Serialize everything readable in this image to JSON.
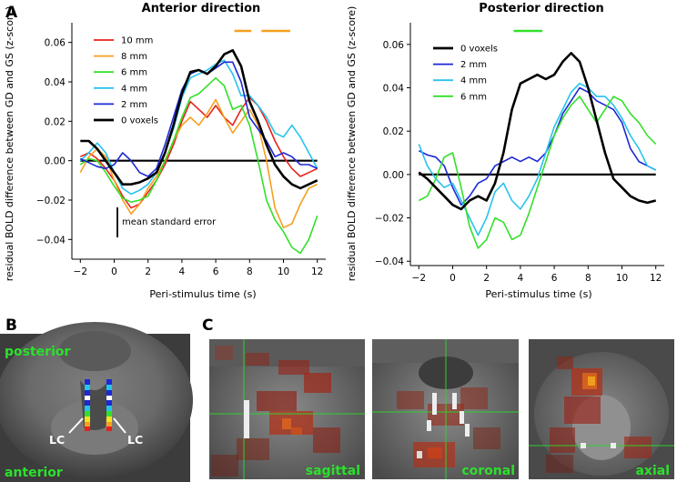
{
  "panel_labels": {
    "a": "A",
    "b": "B",
    "c": "C"
  },
  "colors": {
    "10 mm": "#e8221b",
    "8 mm": "#f5a01e",
    "6 mm": "#33e02a",
    "4 mm": "#27c3ec",
    "2 mm": "#1c27d6",
    "0 voxels": "#000000",
    "bar": "#f5a01e",
    "bar_posterior": "#33e02a"
  },
  "chart_data": [
    {
      "type": "line",
      "title": "Anterior direction",
      "xlabel": "Peri-stimulus time (s)",
      "ylabel": "residual BOLD difference between GD and GS (z-score)",
      "xlim": [
        -2.5,
        12.5
      ],
      "ylim": [
        -0.05,
        0.07
      ],
      "xticks": [
        -2,
        0,
        2,
        4,
        6,
        8,
        10,
        12
      ],
      "yticks": [
        -0.04,
        -0.02,
        0.0,
        0.02,
        0.04,
        0.06
      ],
      "ytick_labels": [
        "−0.04",
        "−0.02",
        "0.00",
        "0.02",
        "0.04",
        "0.06"
      ],
      "x": [
        -2,
        -1.5,
        -1,
        -0.5,
        0,
        0.5,
        1,
        1.5,
        2,
        2.5,
        3,
        3.5,
        4,
        4.5,
        5,
        5.5,
        6,
        6.5,
        7,
        7.5,
        8,
        8.5,
        9,
        9.5,
        10,
        10.5,
        11,
        11.5,
        12
      ],
      "series": [
        {
          "name": "10 mm",
          "values": [
            0.002,
            0.004,
            0.001,
            -0.004,
            -0.01,
            -0.018,
            -0.024,
            -0.022,
            -0.016,
            -0.01,
            -0.002,
            0.008,
            0.02,
            0.03,
            0.026,
            0.022,
            0.028,
            0.022,
            0.018,
            0.026,
            0.032,
            0.028,
            0.02,
            0.01,
            0.002,
            -0.004,
            -0.008,
            -0.006,
            -0.004
          ]
        },
        {
          "name": "8 mm",
          "values": [
            -0.006,
            0.002,
            0.006,
            0.002,
            -0.01,
            -0.02,
            -0.027,
            -0.022,
            -0.014,
            -0.008,
            0.0,
            0.01,
            0.018,
            0.022,
            0.018,
            0.024,
            0.031,
            0.022,
            0.014,
            0.02,
            0.026,
            0.018,
            0.0,
            -0.024,
            -0.034,
            -0.032,
            -0.022,
            -0.014,
            -0.012
          ]
        },
        {
          "name": "6 mm",
          "values": [
            -0.002,
            0.001,
            0.0,
            -0.006,
            -0.013,
            -0.019,
            -0.021,
            -0.02,
            -0.018,
            -0.01,
            0.0,
            0.01,
            0.022,
            0.032,
            0.034,
            0.038,
            0.042,
            0.038,
            0.026,
            0.028,
            0.018,
            0.0,
            -0.02,
            -0.03,
            -0.036,
            -0.044,
            -0.047,
            -0.04,
            -0.028
          ]
        },
        {
          "name": "4 mm",
          "values": [
            0.0,
            0.004,
            0.009,
            0.004,
            -0.006,
            -0.014,
            -0.017,
            -0.015,
            -0.012,
            -0.006,
            0.004,
            0.016,
            0.032,
            0.042,
            0.044,
            0.046,
            0.049,
            0.051,
            0.044,
            0.033,
            0.033,
            0.028,
            0.022,
            0.014,
            0.012,
            0.018,
            0.012,
            0.004,
            -0.004
          ]
        },
        {
          "name": "2 mm",
          "values": [
            0.001,
            -0.001,
            -0.003,
            -0.004,
            -0.002,
            0.004,
            0.0,
            -0.006,
            -0.008,
            -0.004,
            0.008,
            0.022,
            0.036,
            0.044,
            0.046,
            0.044,
            0.047,
            0.05,
            0.05,
            0.04,
            0.022,
            0.016,
            0.01,
            0.002,
            0.004,
            0.002,
            -0.002,
            -0.002,
            -0.004
          ]
        },
        {
          "name": "0 voxels",
          "values": [
            0.01,
            0.01,
            0.006,
            0.0,
            -0.006,
            -0.012,
            -0.012,
            -0.011,
            -0.009,
            -0.006,
            0.004,
            0.018,
            0.034,
            0.045,
            0.046,
            0.044,
            0.048,
            0.054,
            0.056,
            0.048,
            0.03,
            0.02,
            0.008,
            -0.002,
            -0.008,
            -0.012,
            -0.014,
            -0.012,
            -0.01
          ]
        }
      ],
      "significance_bars": [
        [
          7.1,
          8.1
        ],
        [
          8.7,
          10.4
        ]
      ],
      "error_bar_label": "mean standard error",
      "legend": "top-left"
    },
    {
      "type": "line",
      "title": "Posterior direction",
      "xlabel": "Peri-stimulus time (s)",
      "ylabel": "residual BOLD difference between GD and GS (z-score)",
      "xlim": [
        -2.5,
        12.5
      ],
      "ylim": [
        -0.042,
        0.07
      ],
      "xticks": [
        -2,
        0,
        2,
        4,
        6,
        8,
        10,
        12
      ],
      "yticks": [
        -0.04,
        -0.02,
        0.0,
        0.02,
        0.04,
        0.06
      ],
      "ytick_labels": [
        "−0.04",
        "−0.02",
        "0.00",
        "0.02",
        "0.04",
        "0.06"
      ],
      "x": [
        -2,
        -1.5,
        -1,
        -0.5,
        0,
        0.5,
        1,
        1.5,
        2,
        2.5,
        3,
        3.5,
        4,
        4.5,
        5,
        5.5,
        6,
        6.5,
        7,
        7.5,
        8,
        8.5,
        9,
        9.5,
        10,
        10.5,
        11,
        11.5,
        12
      ],
      "series": [
        {
          "name": "0 voxels",
          "values": [
            0.001,
            -0.002,
            -0.006,
            -0.01,
            -0.014,
            -0.016,
            -0.012,
            -0.01,
            -0.012,
            -0.004,
            0.01,
            0.03,
            0.042,
            0.044,
            0.046,
            0.044,
            0.046,
            0.052,
            0.056,
            0.052,
            0.04,
            0.025,
            0.01,
            -0.002,
            -0.006,
            -0.01,
            -0.012,
            -0.013,
            -0.012
          ]
        },
        {
          "name": "2 mm",
          "values": [
            0.011,
            0.009,
            0.008,
            0.004,
            -0.006,
            -0.014,
            -0.01,
            -0.004,
            -0.002,
            0.004,
            0.006,
            0.008,
            0.006,
            0.008,
            0.006,
            0.01,
            0.018,
            0.028,
            0.034,
            0.04,
            0.038,
            0.034,
            0.032,
            0.03,
            0.024,
            0.012,
            0.006,
            0.004,
            0.002
          ]
        },
        {
          "name": "4 mm",
          "values": [
            0.014,
            0.004,
            -0.002,
            -0.006,
            -0.004,
            -0.012,
            -0.02,
            -0.028,
            -0.02,
            -0.008,
            -0.004,
            -0.012,
            -0.016,
            -0.01,
            -0.002,
            0.01,
            0.022,
            0.03,
            0.038,
            0.042,
            0.04,
            0.036,
            0.036,
            0.032,
            0.026,
            0.018,
            0.012,
            0.004,
            0.002
          ]
        },
        {
          "name": "6 mm",
          "values": [
            -0.012,
            -0.01,
            -0.002,
            0.008,
            0.01,
            -0.006,
            -0.024,
            -0.034,
            -0.03,
            -0.02,
            -0.022,
            -0.03,
            -0.028,
            -0.018,
            -0.006,
            0.006,
            0.018,
            0.026,
            0.032,
            0.036,
            0.03,
            0.024,
            0.03,
            0.036,
            0.034,
            0.028,
            0.024,
            0.018,
            0.014
          ]
        }
      ],
      "significance_bars": [
        [
          3.6,
          5.3
        ]
      ],
      "legend": "top-left"
    }
  ],
  "panel_b": {
    "label_top": "posterior",
    "label_bottom": "anterior",
    "lc_left": "LC",
    "lc_right": "LC"
  },
  "panel_c": {
    "views": [
      "sagittal",
      "coronal",
      "axial"
    ]
  }
}
